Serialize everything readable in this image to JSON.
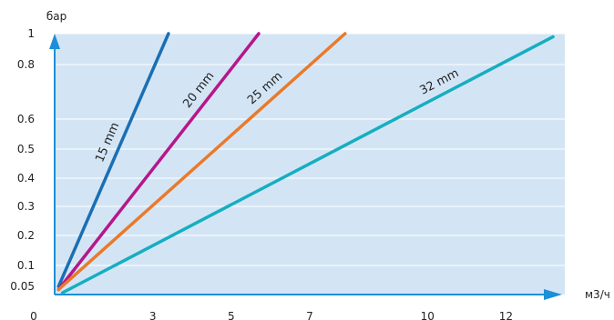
{
  "chart_data": {
    "type": "line",
    "title": "",
    "xlabel": "м3/ч",
    "ylabel": "бар",
    "x_origin_label": "0",
    "x_ticks": [
      {
        "label": "3",
        "value": 3
      },
      {
        "label": "5",
        "value": 5
      },
      {
        "label": "7",
        "value": 7
      },
      {
        "label": "10",
        "value": 10
      },
      {
        "label": "12",
        "value": 12
      }
    ],
    "y_ticks": [
      {
        "label": "0.05",
        "value": 0.05
      },
      {
        "label": "0.1",
        "value": 0.1
      },
      {
        "label": "0.2",
        "value": 0.2
      },
      {
        "label": "0.3",
        "value": 0.3
      },
      {
        "label": "0.4",
        "value": 0.4
      },
      {
        "label": "0.5",
        "value": 0.5
      },
      {
        "label": "0.6",
        "value": 0.6
      },
      {
        "label": "0.8",
        "value": 0.8
      },
      {
        "label": "1",
        "value": 1
      }
    ],
    "grid": true,
    "series": [
      {
        "name": "15 mm",
        "color": "#1a6fb4",
        "points": [
          [
            0.6,
            0.05
          ],
          [
            3.4,
            1.0
          ]
        ]
      },
      {
        "name": "20 mm",
        "color": "#b5178c",
        "points": [
          [
            0.6,
            0.04
          ],
          [
            5.7,
            1.0
          ]
        ]
      },
      {
        "name": "25 mm",
        "color": "#ea7a2a",
        "points": [
          [
            0.6,
            0.04
          ],
          [
            7.9,
            1.0
          ]
        ]
      },
      {
        "name": "32 mm",
        "color": "#16aec1",
        "points": [
          [
            0.7,
            0.03
          ],
          [
            13.2,
            0.98
          ]
        ]
      }
    ],
    "colors": {
      "plot_background": "#d3e5f5",
      "grid": "#ffffff",
      "axis": "#1c8fd6"
    }
  }
}
